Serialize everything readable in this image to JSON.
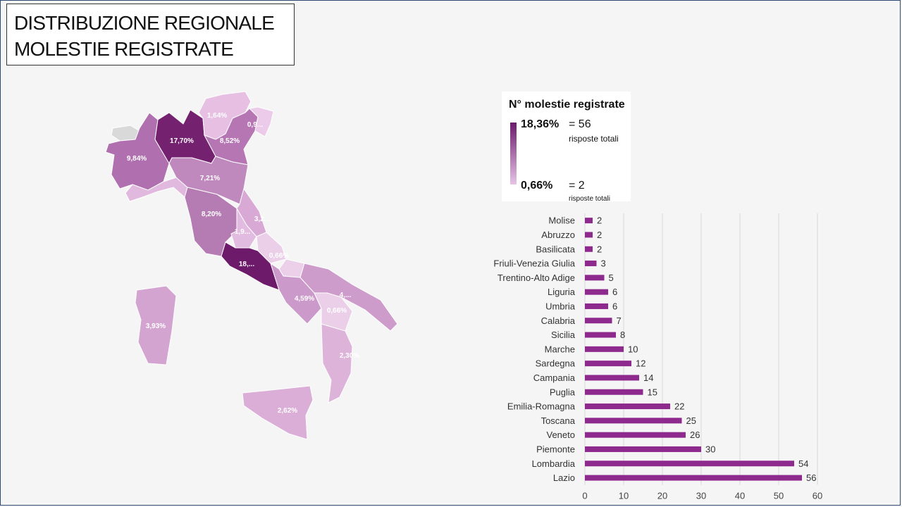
{
  "title": {
    "line1": "DISTRIBUZIONE REGIONALE",
    "line2": "MOLESTIE REGISTRATE"
  },
  "legend": {
    "title": "N° molestie registrate",
    "max_pct": "18,36%",
    "max_val": "= 56",
    "max_sub": "risposte totali",
    "min_pct": "0,66%",
    "min_val": "= 2",
    "min_sub": "risposte totali",
    "color_high": "#6b1a6b",
    "color_low": "#e6c4e6"
  },
  "map": {
    "regions": [
      {
        "name": "Valle d'Aosta",
        "label": "",
        "color": "#d9d9d9"
      },
      {
        "name": "Piemonte",
        "label": "9,84%",
        "color": "#b06fae"
      },
      {
        "name": "Lombardia",
        "label": "17,70%",
        "color": "#742170"
      },
      {
        "name": "Trentino-Alto Adige",
        "label": "1,64%",
        "color": "#e6bfe3"
      },
      {
        "name": "Veneto",
        "label": "8,52%",
        "color": "#b676b4"
      },
      {
        "name": "Friuli-Venezia Giulia",
        "label": "0,9...",
        "color": "#ebcbe9"
      },
      {
        "name": "Liguria",
        "label": "",
        "color": "#e1b8de"
      },
      {
        "name": "Emilia-Romagna",
        "label": "7,21%",
        "color": "#c089be"
      },
      {
        "name": "Toscana",
        "label": "8,20%",
        "color": "#b57cb3"
      },
      {
        "name": "Marche",
        "label": "3,2...",
        "color": "#d9a9d6"
      },
      {
        "name": "Umbria",
        "label": "1,9...",
        "color": "#e2bbe0"
      },
      {
        "name": "Lazio",
        "label": "18,...",
        "color": "#6e1a6b"
      },
      {
        "name": "Abruzzo",
        "label": "0,66%",
        "color": "#ebcfe9"
      },
      {
        "name": "Molise",
        "label": "",
        "color": "#ecd0ea"
      },
      {
        "name": "Campania",
        "label": "4,59%",
        "color": "#cc9aca"
      },
      {
        "name": "Puglia",
        "label": "4,...",
        "color": "#cd9ccb"
      },
      {
        "name": "Basilicata",
        "label": "0,66%",
        "color": "#ebcfe9"
      },
      {
        "name": "Calabria",
        "label": "2,30%",
        "color": "#ddb3da"
      },
      {
        "name": "Sicilia",
        "label": "2,62%",
        "color": "#dbaed8"
      },
      {
        "name": "Sardegna",
        "label": "3,93%",
        "color": "#d4a4d1"
      }
    ]
  },
  "chart_data": {
    "type": "bar",
    "orientation": "horizontal",
    "categories": [
      "Molise",
      "Abruzzo",
      "Basilicata",
      "Friuli-Venezia Giulia",
      "Trentino-Alto Adige",
      "Liguria",
      "Umbria",
      "Calabria",
      "Sicilia",
      "Marche",
      "Sardegna",
      "Campania",
      "Puglia",
      "Emilia-Romagna",
      "Toscana",
      "Veneto",
      "Piemonte",
      "Lombardia",
      "Lazio"
    ],
    "values": [
      2,
      2,
      2,
      3,
      5,
      6,
      6,
      7,
      8,
      10,
      12,
      14,
      15,
      22,
      25,
      26,
      30,
      54,
      56
    ],
    "xlim": [
      0,
      60
    ],
    "xticks": [
      0,
      10,
      20,
      30,
      40,
      50,
      60
    ],
    "grid": true,
    "bar_color": "#8e2a8e",
    "data_labels": true
  }
}
